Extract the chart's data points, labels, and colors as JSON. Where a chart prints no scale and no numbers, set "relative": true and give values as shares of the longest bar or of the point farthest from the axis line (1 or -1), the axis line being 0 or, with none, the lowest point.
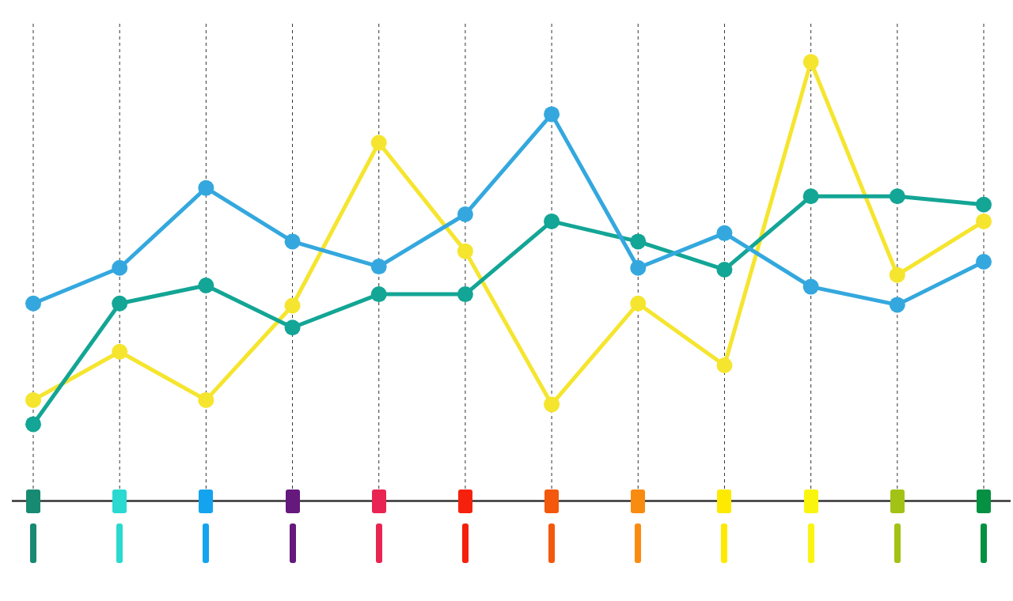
{
  "chart_data": {
    "type": "line",
    "relative": true,
    "categories": [
      null,
      null,
      null,
      null,
      null,
      null,
      null,
      null,
      null,
      null,
      null,
      null
    ],
    "series": [
      {
        "color": "#34a8de",
        "values": [
          0.45,
          0.531,
          0.713,
          0.591,
          0.534,
          0.653,
          0.881,
          0.531,
          0.61,
          0.488,
          0.447,
          0.545
        ]
      },
      {
        "color": "#13a595",
        "values": [
          0.175,
          0.45,
          0.491,
          0.395,
          0.471,
          0.471,
          0.637,
          0.591,
          0.527,
          0.694,
          0.694,
          0.675
        ]
      },
      {
        "color": "#f5e52e",
        "values": [
          0.23,
          0.34,
          0.23,
          0.445,
          0.816,
          0.569,
          0.22,
          0.45,
          0.309,
          1,
          0.515,
          0.637
        ]
      }
    ],
    "grid": "x",
    "legend": false,
    "marker": "circle",
    "line_style": "solid"
  }
}
